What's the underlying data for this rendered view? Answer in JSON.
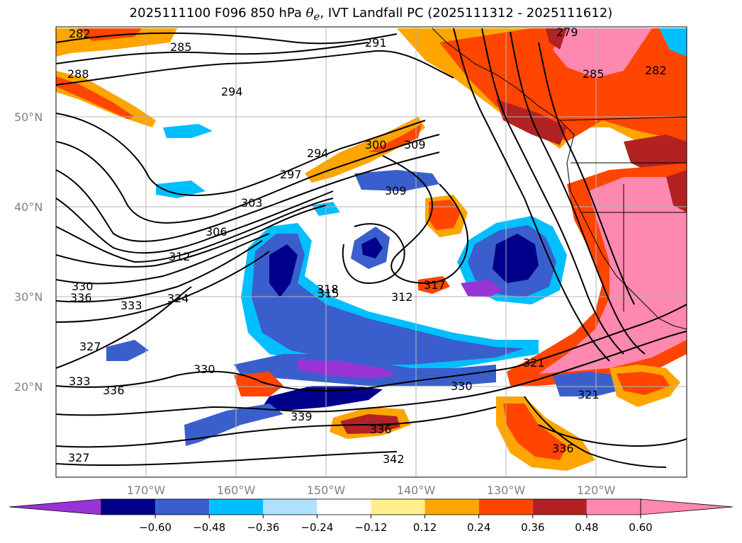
{
  "title": {
    "prefix": "2025111100 F096 850 hPa ",
    "theta": "θ",
    "theta_sub": "e",
    "suffix": ", IVT Landfall PC (2025111312 - 2025111612)"
  },
  "map": {
    "lat_labels": [
      "50°N",
      "40°N",
      "30°N",
      "20°N"
    ],
    "lon_labels": [
      "170°W",
      "160°W",
      "150°W",
      "140°W",
      "130°W",
      "120°W"
    ],
    "contour_labels": [
      "282",
      "285",
      "288",
      "291",
      "294",
      "294",
      "297",
      "300",
      "303",
      "306",
      "309",
      "309",
      "312",
      "312",
      "315",
      "317",
      "318",
      "321",
      "321",
      "324",
      "327",
      "327",
      "330",
      "330",
      "330",
      "333",
      "333",
      "336",
      "336",
      "336",
      "336",
      "339",
      "342",
      "279",
      "282",
      "285"
    ]
  },
  "colorbar": {
    "tick_labels": [
      "−0.60",
      "−0.48",
      "−0.36",
      "−0.24",
      "−0.12",
      "0.12",
      "0.24",
      "0.36",
      "0.48",
      "0.60"
    ],
    "colors": [
      "#9a33d6",
      "#00008b",
      "#3a5fcd",
      "#00bfff",
      "#b0e2ff",
      "#ffffff",
      "#fff08c",
      "#ffa500",
      "#ff4500",
      "#b22222",
      "#ff88b0",
      "#ff88b0"
    ]
  }
}
